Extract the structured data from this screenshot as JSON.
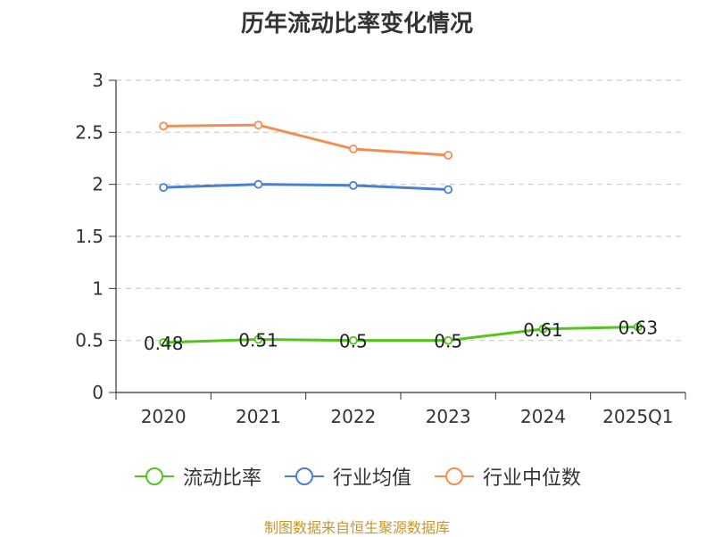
{
  "chart_data": {
    "type": "line",
    "title": "历年流动比率变化情况",
    "categories": [
      "2020",
      "2021",
      "2022",
      "2023",
      "2024",
      "2025Q1"
    ],
    "yticks": [
      "0",
      "0.5",
      "1",
      "1.5",
      "2",
      "2.5",
      "3"
    ],
    "ylim": [
      0,
      3
    ],
    "grid": true,
    "legend_position": "bottom",
    "series": [
      {
        "name": "流动比率",
        "color": "#52c41a",
        "values": [
          0.48,
          0.51,
          0.5,
          0.5,
          0.61,
          0.63
        ],
        "labels": [
          "0.48",
          "0.51",
          "0.5",
          "0.5",
          "0.61",
          "0.63"
        ]
      },
      {
        "name": "行业均值",
        "color": "#4a7fd4",
        "values": [
          1.97,
          2.0,
          1.99,
          1.95,
          null,
          null
        ]
      },
      {
        "name": "行业中位数",
        "color": "#f58d52",
        "values": [
          2.56,
          2.57,
          2.34,
          2.28,
          null,
          null
        ]
      }
    ]
  },
  "source_note": "制图数据来自恒生聚源数据库"
}
